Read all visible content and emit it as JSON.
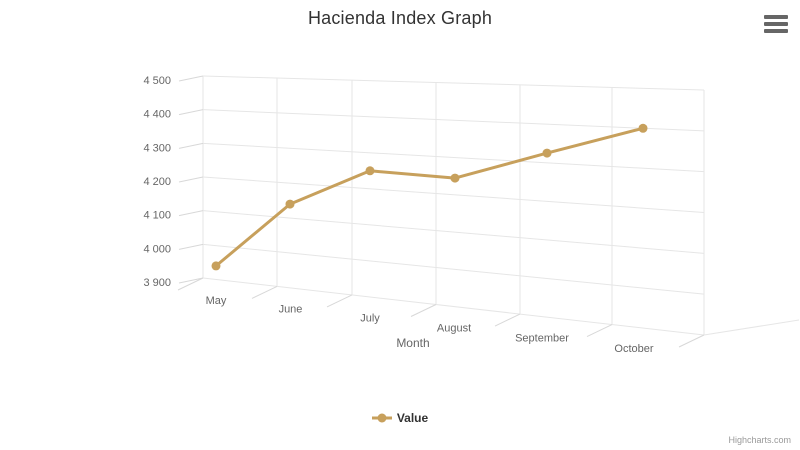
{
  "chart_data": {
    "type": "line",
    "projection": "3d",
    "title": "Hacienda Index Graph",
    "categories": [
      "May",
      "June",
      "July",
      "August",
      "September",
      "October"
    ],
    "series": [
      {
        "name": "Value",
        "values": [
          3940,
          4140,
          4250,
          4245,
          4325,
          4400
        ]
      }
    ],
    "xlabel": "Month",
    "ylabel": "",
    "ylim": [
      3900,
      4500
    ],
    "ytick_step": 100,
    "ytick_labels": [
      "3 900",
      "4 000",
      "4 100",
      "4 200",
      "4 300",
      "4 400",
      "4 500"
    ],
    "grid": true,
    "legend_position": "bottom-center"
  },
  "legend": {
    "items": [
      {
        "label": "Value",
        "color": "#C7A05C",
        "marker": "line-circle"
      }
    ]
  },
  "context_menu": {
    "icon": "hamburger-icon",
    "bar_color": "#666666"
  },
  "credits": {
    "text": "Highcharts.com"
  },
  "colors": {
    "background": "#FFFFFF",
    "series": "#C7A05C",
    "grid_line": "#E6E6E6",
    "axis_line": "#D8D8D8",
    "title_text": "#333333",
    "label_text": "#666666",
    "axis_title_text": "#666666",
    "credits_text": "#999999"
  }
}
